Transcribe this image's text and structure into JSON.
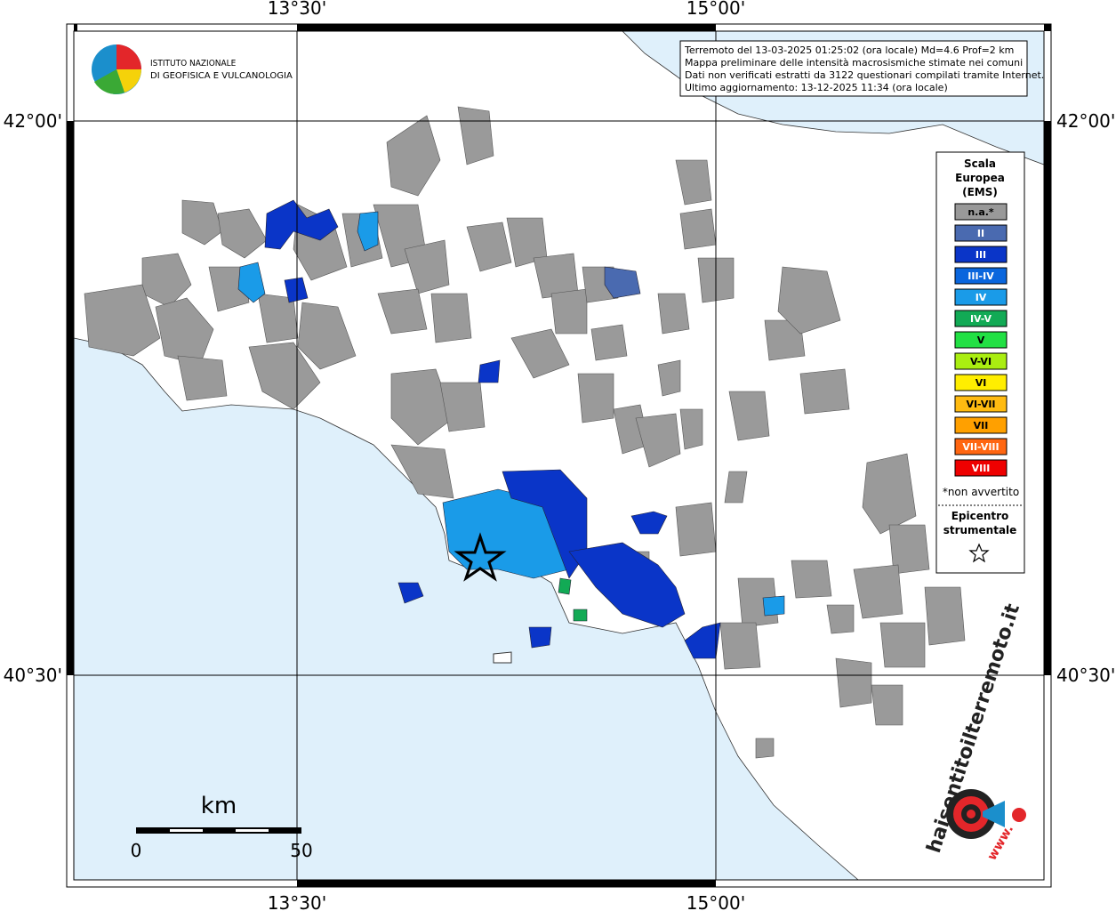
{
  "map": {
    "graticule": {
      "lon_labels": [
        "13°30'",
        "15°00'"
      ],
      "lat_labels": [
        "42°00'",
        "40°30'"
      ]
    },
    "institute": {
      "line1": "ISTITUTO NAZIONALE",
      "line2": "DI GEOFISICA E VULCANOLOGIA"
    },
    "info_box": [
      "Terremoto del 13-03-2025 01:25:02 (ora locale) Md=4.6 Prof=2 km",
      "Mappa preliminare delle intensità macrosismiche stimate nei comuni",
      "Dati non verificati estratti da 3122 questionari compilati tramite Internet.",
      "Ultimo aggiornamento: 13-12-2025 11:34 (ora locale)"
    ],
    "legend": {
      "title": [
        "Scala",
        "Europea",
        "(EMS)"
      ],
      "items": [
        {
          "label": "n.a.*",
          "color": "#999999"
        },
        {
          "label": "II",
          "color": "#4a6ab0"
        },
        {
          "label": "III",
          "color": "#0a35c8"
        },
        {
          "label": "III-IV",
          "color": "#0a66dd"
        },
        {
          "label": "IV",
          "color": "#1a9be8"
        },
        {
          "label": "IV-V",
          "color": "#12aa55"
        },
        {
          "label": "V",
          "color": "#22e044"
        },
        {
          "label": "V-VI",
          "color": "#aaee11"
        },
        {
          "label": "VI",
          "color": "#ffee00"
        },
        {
          "label": "VI-VII",
          "color": "#ffbb11"
        },
        {
          "label": "VII",
          "color": "#ffa000"
        },
        {
          "label": "VII-VIII",
          "color": "#ff6611"
        },
        {
          "label": "VIII",
          "color": "#ee0000"
        }
      ],
      "note": "*non avvertito",
      "epicenter": [
        "Epicentro",
        "strumentale"
      ]
    },
    "scale_bar": {
      "unit": "km",
      "labels": [
        0,
        50
      ]
    },
    "watermark": {
      "text": "haisentitoilterremoto.it",
      "prefix": "www."
    }
  }
}
